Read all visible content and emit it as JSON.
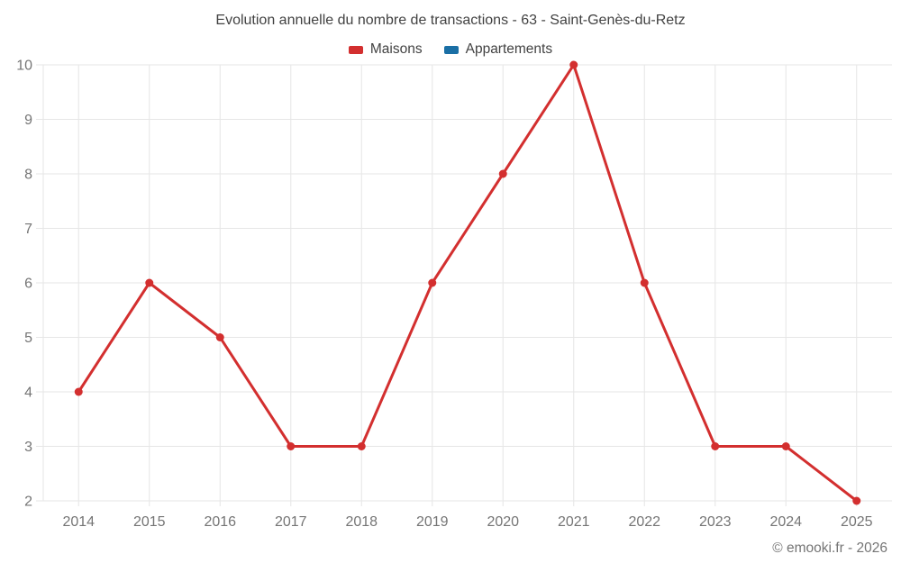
{
  "title": "Evolution annuelle du nombre de transactions - 63 - Saint-Genès-du-Retz",
  "footer": "© emooki.fr - 2026",
  "colors": {
    "maisons": "#d32f2f",
    "appartements": "#1a6fa5",
    "grid": "#e6e6e6",
    "title_text": "#424242",
    "axis_text": "#757575"
  },
  "legend": {
    "items": [
      {
        "label": "Maisons",
        "color": "#d32f2f"
      },
      {
        "label": "Appartements",
        "color": "#1a6fa5"
      }
    ]
  },
  "chart_data": {
    "type": "line",
    "title": "Evolution annuelle du nombre de transactions - 63 - Saint-Genès-du-Retz",
    "categories": [
      "2014",
      "2015",
      "2016",
      "2017",
      "2018",
      "2019",
      "2020",
      "2021",
      "2022",
      "2023",
      "2024",
      "2025"
    ],
    "series": [
      {
        "name": "Maisons",
        "color": "#d32f2f",
        "values": [
          4,
          6,
          5,
          3,
          3,
          6,
          8,
          10,
          6,
          3,
          3,
          2
        ]
      },
      {
        "name": "Appartements",
        "color": "#1a6fa5",
        "values": []
      }
    ],
    "xlabel": "",
    "ylabel": "",
    "ylim": [
      2,
      10
    ],
    "yticks": [
      2,
      3,
      4,
      5,
      6,
      7,
      8,
      9,
      10
    ],
    "grid": true,
    "legend_position": "top"
  }
}
